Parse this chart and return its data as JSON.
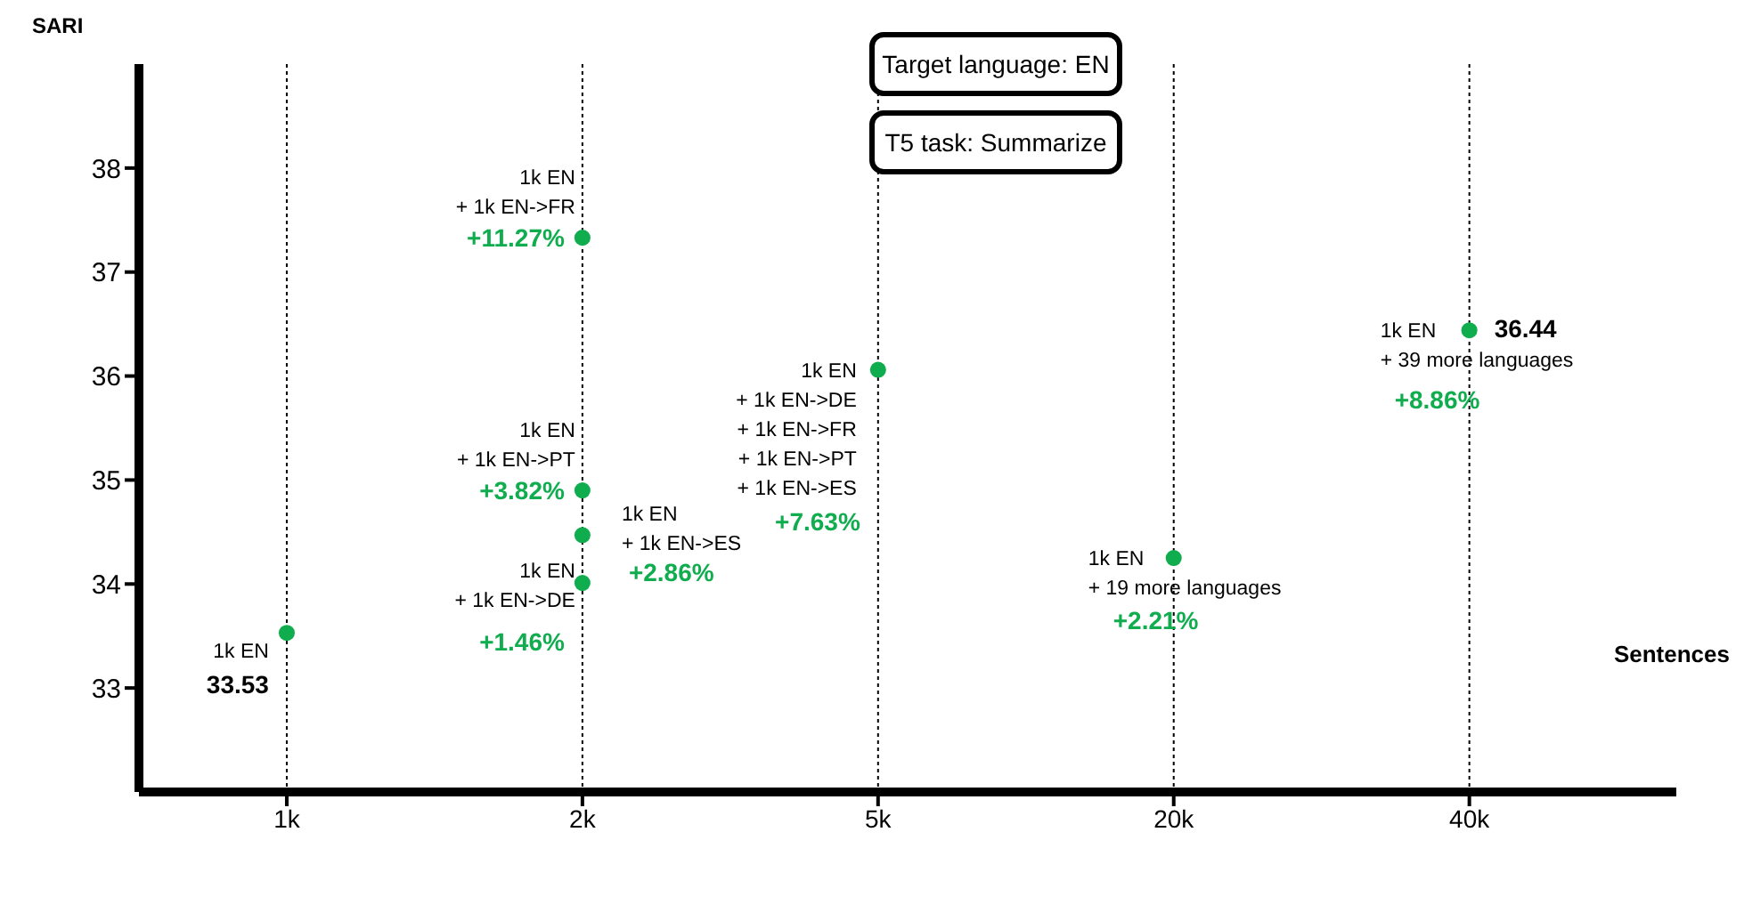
{
  "chart_data": {
    "type": "scatter",
    "xlabel": "Sentences",
    "ylabel": "SARI",
    "categories": [
      "1k",
      "2k",
      "5k",
      "20k",
      "40k"
    ],
    "series": [
      {
        "color": "#10ad4e",
        "x": [
          "1k",
          "2k",
          "2k",
          "2k",
          "2k",
          "5k",
          "20k",
          "40k"
        ],
        "values": [
          33.53,
          37.33,
          34.9,
          34.47,
          34.01,
          36.06,
          34.25,
          36.44
        ],
        "value_labels": [
          "33.53",
          null,
          null,
          null,
          null,
          null,
          null,
          "36.44"
        ]
      }
    ],
    "ylim": [
      32,
      39
    ],
    "yticks": [
      33,
      34,
      35,
      36,
      37,
      38
    ],
    "grid": "x",
    "marker": "circle",
    "legend": false,
    "annotations": [
      {
        "text": "1k EN",
        "x": "1k",
        "y": 33.53
      },
      {
        "text": "1k EN\n+ 1k EN->FR",
        "x": "2k",
        "y": 37.33
      },
      {
        "text": "1k EN\n+ 1k EN->PT",
        "x": "2k",
        "y": 34.9
      },
      {
        "text": "1k EN\n+ 1k EN->ES",
        "x": "2k",
        "y": 34.47
      },
      {
        "text": "1k EN\n+ 1k EN->DE",
        "x": "2k",
        "y": 34.01
      },
      {
        "text": "1k EN\n+ 1k EN->DE\n+ 1k EN->FR\n+ 1k EN->PT\n+ 1k EN->ES",
        "x": "5k",
        "y": 36.06
      },
      {
        "text": "1k EN\n+ 19 more languages",
        "x": "20k",
        "y": 34.25
      },
      {
        "text": "1k EN\n+ 39 more languages",
        "x": "40k",
        "y": 36.44
      },
      "+11.27%",
      "+3.82%",
      "+2.86%",
      "+1.46%",
      "+7.63%",
      "+2.21%",
      "+8.86%",
      "Target language: EN",
      "T5 task: Summarize"
    ]
  }
}
